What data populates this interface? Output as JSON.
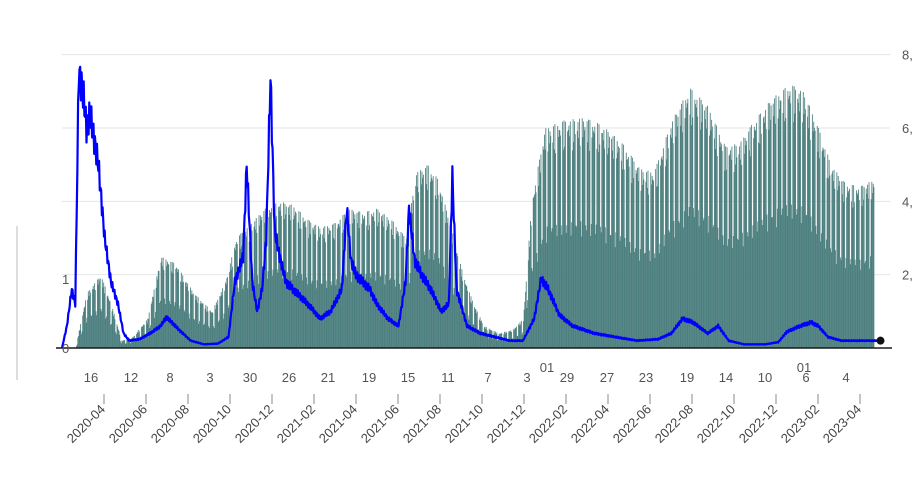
{
  "chart_data": {
    "type": "bar",
    "colors": {
      "bars": "#4d7f7f",
      "line": "#0000ff",
      "grid": "#e6e6e6",
      "axis": "#1a1a1a"
    },
    "left_axis_ticks": [
      "0",
      "1"
    ],
    "right_axis_ticks": [
      "2,",
      "4,",
      "6,",
      "8,"
    ],
    "day_ticks": [
      "16",
      "12",
      "8",
      "3",
      "30",
      "26",
      "21",
      "19",
      "15",
      "11",
      "7",
      "3",
      "29",
      "27",
      "23",
      "19",
      "14",
      "10",
      "6",
      "4"
    ],
    "inline_labels": [
      "01",
      "01"
    ],
    "month_labels": [
      "2020-04",
      "2020-06",
      "2020-08",
      "2020-10",
      "2020-12",
      "2021-02",
      "2021-04",
      "2021-06",
      "2021-08",
      "2021-10",
      "2021-12",
      "2022-02",
      "2022-04",
      "2022-06",
      "2022-08",
      "2022-10",
      "2022-12",
      "2023-02",
      "2023-04"
    ],
    "x_range": [
      "2020-03-01",
      "2023-05-20"
    ],
    "bars": {
      "ylim": [
        0,
        9
      ],
      "points": [
        [
          "2020-03-20",
          0
        ],
        [
          "2020-04-05",
          1.5
        ],
        [
          "2020-04-25",
          2.0
        ],
        [
          "2020-05-10",
          1.2
        ],
        [
          "2020-05-25",
          0.2
        ],
        [
          "2020-06-10",
          0.3
        ],
        [
          "2020-07-01",
          0.8
        ],
        [
          "2020-07-20",
          2.5
        ],
        [
          "2020-08-10",
          2.3
        ],
        [
          "2020-09-05",
          1.5
        ],
        [
          "2020-10-01",
          1.0
        ],
        [
          "2020-10-20",
          1.8
        ],
        [
          "2020-11-05",
          3.0
        ],
        [
          "2020-11-25",
          3.4
        ],
        [
          "2020-12-15",
          3.8
        ],
        [
          "2021-01-05",
          4.0
        ],
        [
          "2021-01-25",
          3.9
        ],
        [
          "2021-02-15",
          3.5
        ],
        [
          "2021-03-05",
          3.3
        ],
        [
          "2021-03-25",
          3.4
        ],
        [
          "2021-04-15",
          3.8
        ],
        [
          "2021-05-05",
          3.7
        ],
        [
          "2021-05-25",
          3.8
        ],
        [
          "2021-06-15",
          3.5
        ],
        [
          "2021-07-05",
          3.0
        ],
        [
          "2021-07-20",
          4.8
        ],
        [
          "2021-08-05",
          5.0
        ],
        [
          "2021-08-20",
          4.6
        ],
        [
          "2021-09-05",
          3.5
        ],
        [
          "2021-09-25",
          2.0
        ],
        [
          "2021-10-10",
          1.2
        ],
        [
          "2021-10-25",
          0.6
        ],
        [
          "2021-11-15",
          0.4
        ],
        [
          "2021-12-05",
          0.5
        ],
        [
          "2021-12-20",
          0.8
        ],
        [
          "2022-01-01",
          4.0
        ],
        [
          "2022-01-20",
          6.0
        ],
        [
          "2022-02-15",
          6.2
        ],
        [
          "2022-03-15",
          6.3
        ],
        [
          "2022-04-10",
          6.1
        ],
        [
          "2022-05-10",
          5.6
        ],
        [
          "2022-06-05",
          4.9
        ],
        [
          "2022-06-25",
          4.8
        ],
        [
          "2022-07-20",
          6.2
        ],
        [
          "2022-08-15",
          7.1
        ],
        [
          "2022-09-10",
          6.6
        ],
        [
          "2022-10-05",
          5.5
        ],
        [
          "2022-10-25",
          5.6
        ],
        [
          "2022-11-15",
          6.2
        ],
        [
          "2022-12-10",
          6.8
        ],
        [
          "2023-01-05",
          7.2
        ],
        [
          "2023-01-25",
          7.0
        ],
        [
          "2023-02-15",
          6.0
        ],
        [
          "2023-03-05",
          5.0
        ],
        [
          "2023-03-25",
          4.5
        ],
        [
          "2023-04-15",
          4.4
        ],
        [
          "2023-05-05",
          4.6
        ]
      ]
    },
    "line": {
      "ylim": [
        0,
        4.5
      ],
      "points": [
        [
          "2020-03-01",
          0
        ],
        [
          "2020-03-08",
          0.3
        ],
        [
          "2020-03-15",
          0.8
        ],
        [
          "2020-03-20",
          0.6
        ],
        [
          "2020-03-25",
          3.8
        ],
        [
          "2020-04-01",
          3.4
        ],
        [
          "2020-04-05",
          3.0
        ],
        [
          "2020-04-10",
          3.2
        ],
        [
          "2020-04-15",
          2.9
        ],
        [
          "2020-04-22",
          2.5
        ],
        [
          "2020-05-01",
          1.5
        ],
        [
          "2020-05-10",
          0.9
        ],
        [
          "2020-05-20",
          0.6
        ],
        [
          "2020-05-28",
          0.2
        ],
        [
          "2020-06-05",
          0.1
        ],
        [
          "2020-06-20",
          0.12
        ],
        [
          "2020-07-05",
          0.2
        ],
        [
          "2020-07-20",
          0.3
        ],
        [
          "2020-07-28",
          0.42
        ],
        [
          "2020-08-05",
          0.35
        ],
        [
          "2020-08-15",
          0.25
        ],
        [
          "2020-09-01",
          0.1
        ],
        [
          "2020-09-20",
          0.05
        ],
        [
          "2020-10-10",
          0.06
        ],
        [
          "2020-10-25",
          0.15
        ],
        [
          "2020-11-03",
          0.9
        ],
        [
          "2020-11-10",
          1.1
        ],
        [
          "2020-11-15",
          1.25
        ],
        [
          "2020-11-20",
          2.5
        ],
        [
          "2020-11-28",
          0.9
        ],
        [
          "2020-12-05",
          0.5
        ],
        [
          "2020-12-12",
          0.8
        ],
        [
          "2020-12-18",
          1.5
        ],
        [
          "2020-12-24",
          3.7
        ],
        [
          "2020-12-30",
          1.6
        ],
        [
          "2021-01-05",
          1.3
        ],
        [
          "2021-01-15",
          0.9
        ],
        [
          "2021-01-25",
          0.8
        ],
        [
          "2021-02-05",
          0.7
        ],
        [
          "2021-02-20",
          0.55
        ],
        [
          "2021-03-05",
          0.4
        ],
        [
          "2021-03-20",
          0.5
        ],
        [
          "2021-04-05",
          0.8
        ],
        [
          "2021-04-12",
          1.9
        ],
        [
          "2021-04-18",
          1.2
        ],
        [
          "2021-04-25",
          1.0
        ],
        [
          "2021-05-05",
          0.9
        ],
        [
          "2021-05-15",
          0.8
        ],
        [
          "2021-05-25",
          0.6
        ],
        [
          "2021-06-10",
          0.4
        ],
        [
          "2021-06-25",
          0.3
        ],
        [
          "2021-07-05",
          0.9
        ],
        [
          "2021-07-10",
          1.9
        ],
        [
          "2021-07-18",
          1.2
        ],
        [
          "2021-07-28",
          1.0
        ],
        [
          "2021-08-10",
          0.8
        ],
        [
          "2021-08-25",
          0.5
        ],
        [
          "2021-09-05",
          0.6
        ],
        [
          "2021-09-10",
          2.35
        ],
        [
          "2021-09-16",
          0.8
        ],
        [
          "2021-10-01",
          0.3
        ],
        [
          "2021-10-20",
          0.2
        ],
        [
          "2021-11-10",
          0.15
        ],
        [
          "2021-12-01",
          0.1
        ],
        [
          "2021-12-20",
          0.1
        ],
        [
          "2022-01-05",
          0.4
        ],
        [
          "2022-01-15",
          0.95
        ],
        [
          "2022-01-25",
          0.8
        ],
        [
          "2022-02-10",
          0.45
        ],
        [
          "2022-03-01",
          0.3
        ],
        [
          "2022-04-01",
          0.2
        ],
        [
          "2022-05-01",
          0.15
        ],
        [
          "2022-06-01",
          0.1
        ],
        [
          "2022-07-01",
          0.12
        ],
        [
          "2022-07-20",
          0.2
        ],
        [
          "2022-08-05",
          0.4
        ],
        [
          "2022-08-20",
          0.35
        ],
        [
          "2022-09-10",
          0.2
        ],
        [
          "2022-09-25",
          0.3
        ],
        [
          "2022-10-10",
          0.1
        ],
        [
          "2022-11-01",
          0.05
        ],
        [
          "2022-12-01",
          0.05
        ],
        [
          "2022-12-20",
          0.08
        ],
        [
          "2023-01-01",
          0.22
        ],
        [
          "2023-01-20",
          0.3
        ],
        [
          "2023-02-05",
          0.35
        ],
        [
          "2023-02-15",
          0.3
        ],
        [
          "2023-03-01",
          0.15
        ],
        [
          "2023-03-20",
          0.1
        ],
        [
          "2023-05-15",
          0.1
        ]
      ]
    },
    "grid": true
  }
}
